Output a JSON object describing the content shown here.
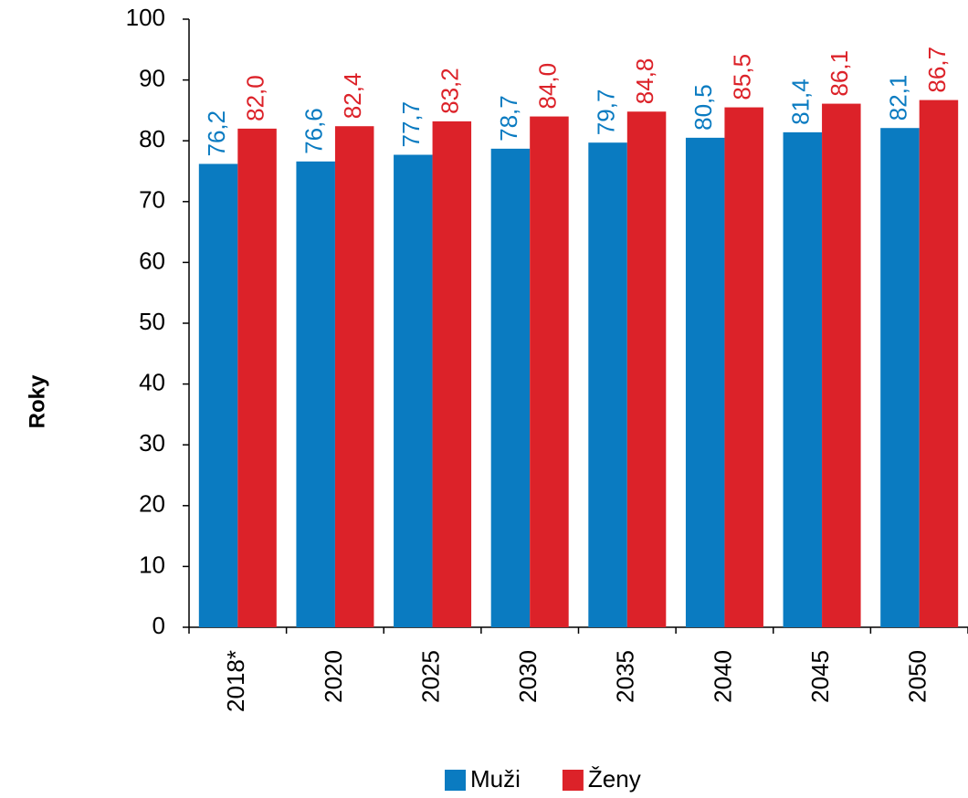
{
  "chart_data": {
    "type": "bar",
    "y_label": "Roky",
    "categories": [
      "2018*",
      "2020",
      "2025",
      "2030",
      "2035",
      "2040",
      "2045",
      "2050"
    ],
    "series": [
      {
        "name": "Muži",
        "color": "#0a7bc1",
        "values": [
          76.2,
          76.6,
          77.7,
          78.7,
          79.7,
          80.5,
          81.4,
          82.1
        ],
        "value_labels": [
          "76,2",
          "76,6",
          "77,7",
          "78,7",
          "79,7",
          "80,5",
          "81,4",
          "82,1"
        ]
      },
      {
        "name": "Ženy",
        "color": "#dc2229",
        "values": [
          82.0,
          82.4,
          83.2,
          84.0,
          84.8,
          85.5,
          86.1,
          86.7
        ],
        "value_labels": [
          "82,0",
          "82,4",
          "83,2",
          "84,0",
          "84,8",
          "85,5",
          "86,1",
          "86,7"
        ]
      }
    ],
    "ylim": [
      0,
      100
    ],
    "yticks": [
      0,
      10,
      20,
      30,
      40,
      50,
      60,
      70,
      80,
      90,
      100
    ],
    "grid": false,
    "legend": "bottom"
  }
}
